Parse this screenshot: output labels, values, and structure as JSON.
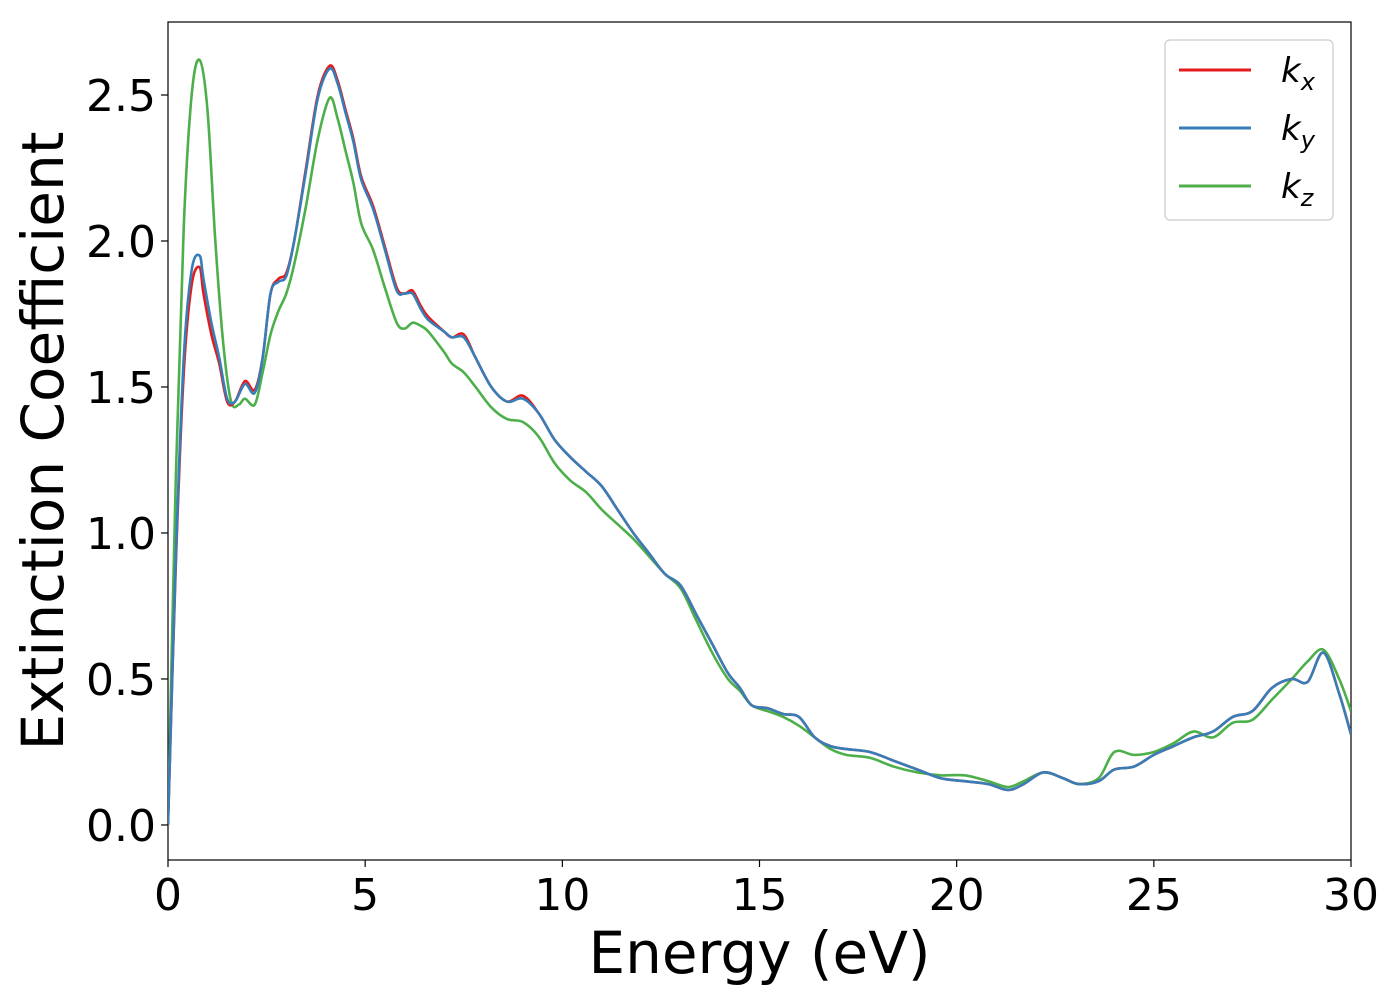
{
  "chart_data": {
    "type": "line",
    "xlabel": "Energy (eV)",
    "ylabel": "Extinction Coefficient",
    "xlim": [
      0,
      30
    ],
    "ylim": [
      -0.12,
      2.75
    ],
    "xticks": [
      0,
      5,
      10,
      15,
      20,
      25,
      30
    ],
    "xtick_labels": [
      "0",
      "5",
      "10",
      "15",
      "20",
      "25",
      "30"
    ],
    "yticks": [
      0.0,
      0.5,
      1.0,
      1.5,
      2.0,
      2.5
    ],
    "ytick_labels": [
      "0.0",
      "0.5",
      "1.0",
      "1.5",
      "2.0",
      "2.5"
    ],
    "grid": false,
    "legend_position": "top-right",
    "series": [
      {
        "name": "k_x",
        "base": "k",
        "sub": "x",
        "color": "#e41a1c",
        "x": [
          0,
          0.2,
          0.4,
          0.6,
          0.8,
          0.9,
          1.1,
          1.3,
          1.5,
          1.7,
          1.95,
          2.2,
          2.4,
          2.6,
          2.8,
          3.0,
          3.2,
          3.5,
          3.8,
          4.1,
          4.3,
          4.5,
          4.7,
          4.9,
          5.2,
          5.5,
          5.8,
          6.0,
          6.2,
          6.4,
          6.6,
          7.0,
          7.2,
          7.5,
          7.8,
          8.2,
          8.6,
          9.0,
          9.4,
          9.8,
          10.2,
          10.6,
          11.0,
          11.4,
          11.8,
          12.2,
          12.6,
          13.0,
          13.4,
          13.8,
          14.2,
          14.5,
          14.8,
          15.2,
          15.6,
          16.0,
          16.4,
          16.8,
          17.2,
          17.8,
          18.4,
          19.0,
          19.6,
          20.2,
          20.8,
          21.3,
          21.7,
          22.2,
          22.7,
          23.1,
          23.6,
          24.0,
          24.5,
          25.0,
          25.5,
          26.0,
          26.5,
          27.0,
          27.5,
          28.0,
          28.5,
          28.9,
          29.3,
          29.7,
          30.0
        ],
        "y": [
          0.0,
          0.9,
          1.55,
          1.85,
          1.91,
          1.82,
          1.68,
          1.58,
          1.45,
          1.45,
          1.52,
          1.49,
          1.6,
          1.82,
          1.87,
          1.89,
          2.0,
          2.25,
          2.5,
          2.6,
          2.55,
          2.45,
          2.35,
          2.22,
          2.12,
          1.98,
          1.84,
          1.82,
          1.83,
          1.78,
          1.74,
          1.69,
          1.67,
          1.68,
          1.6,
          1.5,
          1.45,
          1.47,
          1.41,
          1.32,
          1.26,
          1.21,
          1.16,
          1.08,
          1.0,
          0.93,
          0.86,
          0.82,
          0.72,
          0.62,
          0.52,
          0.47,
          0.41,
          0.4,
          0.38,
          0.37,
          0.3,
          0.27,
          0.26,
          0.25,
          0.22,
          0.19,
          0.16,
          0.15,
          0.14,
          0.12,
          0.14,
          0.18,
          0.16,
          0.14,
          0.15,
          0.19,
          0.2,
          0.24,
          0.27,
          0.3,
          0.32,
          0.37,
          0.39,
          0.47,
          0.5,
          0.49,
          0.59,
          0.45,
          0.31
        ]
      },
      {
        "name": "k_y",
        "base": "k",
        "sub": "y",
        "color": "#377eb8",
        "x": [
          0,
          0.2,
          0.4,
          0.6,
          0.8,
          0.9,
          1.1,
          1.3,
          1.5,
          1.7,
          1.95,
          2.2,
          2.4,
          2.6,
          2.8,
          3.0,
          3.2,
          3.5,
          3.8,
          4.1,
          4.3,
          4.5,
          4.7,
          4.9,
          5.2,
          5.5,
          5.8,
          6.0,
          6.2,
          6.4,
          6.6,
          7.0,
          7.2,
          7.5,
          7.8,
          8.2,
          8.6,
          9.0,
          9.4,
          9.8,
          10.2,
          10.6,
          11.0,
          11.4,
          11.8,
          12.2,
          12.6,
          13.0,
          13.4,
          13.8,
          14.2,
          14.5,
          14.8,
          15.2,
          15.6,
          16.0,
          16.4,
          16.8,
          17.2,
          17.8,
          18.4,
          19.0,
          19.6,
          20.2,
          20.8,
          21.3,
          21.7,
          22.2,
          22.7,
          23.1,
          23.6,
          24.0,
          24.5,
          25.0,
          25.5,
          26.0,
          26.5,
          27.0,
          27.5,
          28.0,
          28.5,
          28.9,
          29.3,
          29.7,
          30.0
        ],
        "y": [
          0.0,
          0.92,
          1.6,
          1.9,
          1.95,
          1.87,
          1.72,
          1.6,
          1.46,
          1.45,
          1.51,
          1.48,
          1.6,
          1.82,
          1.86,
          1.88,
          2.0,
          2.24,
          2.49,
          2.59,
          2.54,
          2.44,
          2.34,
          2.21,
          2.11,
          1.97,
          1.83,
          1.82,
          1.82,
          1.77,
          1.73,
          1.69,
          1.67,
          1.67,
          1.6,
          1.5,
          1.45,
          1.46,
          1.41,
          1.32,
          1.26,
          1.21,
          1.16,
          1.08,
          1.0,
          0.93,
          0.86,
          0.82,
          0.72,
          0.62,
          0.52,
          0.47,
          0.41,
          0.4,
          0.38,
          0.37,
          0.3,
          0.27,
          0.26,
          0.25,
          0.22,
          0.19,
          0.16,
          0.15,
          0.14,
          0.12,
          0.14,
          0.18,
          0.16,
          0.14,
          0.15,
          0.19,
          0.2,
          0.24,
          0.27,
          0.3,
          0.32,
          0.37,
          0.39,
          0.47,
          0.5,
          0.49,
          0.59,
          0.45,
          0.31
        ]
      },
      {
        "name": "k_z",
        "base": "k",
        "sub": "z",
        "color": "#4daf4a",
        "x": [
          0,
          0.2,
          0.4,
          0.6,
          0.8,
          1.0,
          1.2,
          1.4,
          1.6,
          1.8,
          1.95,
          2.2,
          2.4,
          2.6,
          2.8,
          3.0,
          3.2,
          3.5,
          3.8,
          4.1,
          4.3,
          4.5,
          4.7,
          4.9,
          5.2,
          5.5,
          5.8,
          6.0,
          6.2,
          6.4,
          6.6,
          7.0,
          7.2,
          7.5,
          7.8,
          8.2,
          8.6,
          9.0,
          9.4,
          9.8,
          10.2,
          10.6,
          11.0,
          11.4,
          11.8,
          12.2,
          12.6,
          13.0,
          13.4,
          13.8,
          14.2,
          14.5,
          14.8,
          15.2,
          15.6,
          16.0,
          16.4,
          16.8,
          17.2,
          17.8,
          18.4,
          19.0,
          19.6,
          20.2,
          20.8,
          21.3,
          21.7,
          22.2,
          22.7,
          23.1,
          23.6,
          24.0,
          24.5,
          25.0,
          25.5,
          26.0,
          26.5,
          27.0,
          27.5,
          28.0,
          28.5,
          28.9,
          29.3,
          29.7,
          30.0
        ],
        "y": [
          0.0,
          1.2,
          2.05,
          2.5,
          2.62,
          2.45,
          2.0,
          1.65,
          1.45,
          1.44,
          1.46,
          1.44,
          1.55,
          1.68,
          1.76,
          1.82,
          1.92,
          2.12,
          2.35,
          2.49,
          2.42,
          2.31,
          2.2,
          2.06,
          1.97,
          1.84,
          1.72,
          1.7,
          1.72,
          1.71,
          1.69,
          1.62,
          1.58,
          1.55,
          1.5,
          1.43,
          1.39,
          1.38,
          1.33,
          1.24,
          1.18,
          1.14,
          1.08,
          1.03,
          0.98,
          0.92,
          0.86,
          0.81,
          0.7,
          0.59,
          0.5,
          0.46,
          0.41,
          0.39,
          0.37,
          0.34,
          0.3,
          0.26,
          0.24,
          0.23,
          0.2,
          0.18,
          0.17,
          0.17,
          0.15,
          0.13,
          0.15,
          0.18,
          0.16,
          0.14,
          0.16,
          0.25,
          0.24,
          0.25,
          0.28,
          0.32,
          0.3,
          0.35,
          0.36,
          0.43,
          0.5,
          0.56,
          0.6,
          0.5,
          0.39
        ]
      }
    ]
  }
}
